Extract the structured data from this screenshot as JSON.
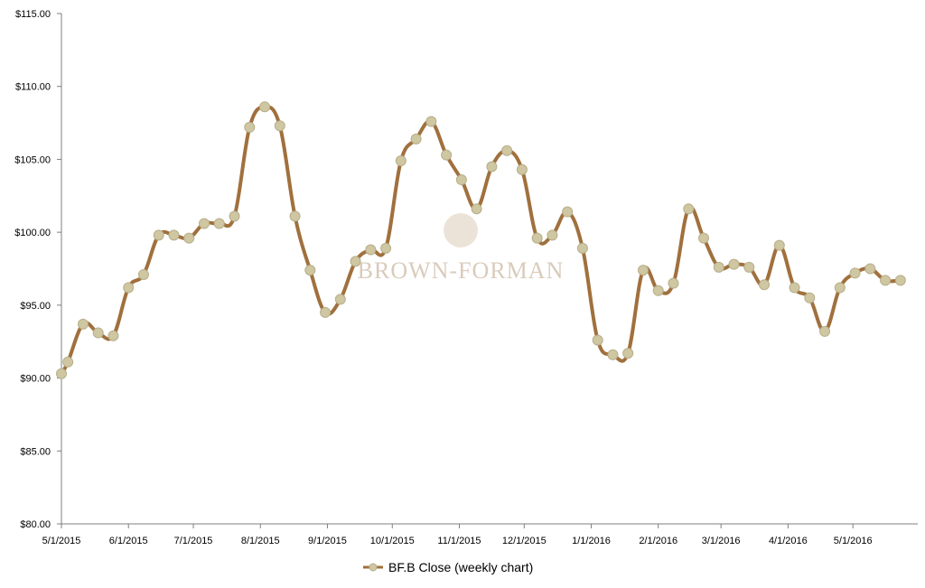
{
  "watermark": {
    "text": "BROWN-FORMAN",
    "color": "#d9cbbb"
  },
  "colors": {
    "line": "#a0703d",
    "marker_fill": "#cfc6a2",
    "marker_stroke": "#b7ae8a",
    "axis": "#7f7f7f"
  },
  "chart_data": {
    "type": "line",
    "title": "",
    "xlabel": "",
    "ylabel": "",
    "ylim": [
      80,
      115
    ],
    "yticks": [
      80,
      85,
      90,
      95,
      100,
      105,
      110,
      115
    ],
    "ytick_labels": [
      "$80.00",
      "$85.00",
      "$90.00",
      "$95.00",
      "$100.00",
      "$105.00",
      "$110.00",
      "$115.00"
    ],
    "xlim": [
      "2015-05-01",
      "2016-05-31"
    ],
    "xtick_dates": [
      "2015-05-01",
      "2015-06-01",
      "2015-07-01",
      "2015-08-01",
      "2015-09-01",
      "2015-10-01",
      "2015-11-01",
      "2015-12-01",
      "2016-01-01",
      "2016-02-01",
      "2016-03-01",
      "2016-04-01",
      "2016-05-01"
    ],
    "xtick_labels": [
      "5/1/2015",
      "6/1/2015",
      "7/1/2015",
      "8/1/2015",
      "9/1/2015",
      "10/1/2015",
      "11/1/2015",
      "12/1/2015",
      "1/1/2016",
      "2/1/2016",
      "3/1/2016",
      "4/1/2016",
      "5/1/2016"
    ],
    "grid": false,
    "legend_position": "bottom",
    "series": [
      {
        "name": "BF.B Close (weekly chart)",
        "x": [
          "2015-05-01",
          "2015-05-04",
          "2015-05-11",
          "2015-05-18",
          "2015-05-25",
          "2015-06-01",
          "2015-06-08",
          "2015-06-15",
          "2015-06-22",
          "2015-06-29",
          "2015-07-06",
          "2015-07-13",
          "2015-07-20",
          "2015-07-27",
          "2015-08-03",
          "2015-08-10",
          "2015-08-17",
          "2015-08-24",
          "2015-08-31",
          "2015-09-07",
          "2015-09-14",
          "2015-09-21",
          "2015-09-28",
          "2015-10-05",
          "2015-10-12",
          "2015-10-19",
          "2015-10-26",
          "2015-11-02",
          "2015-11-09",
          "2015-11-16",
          "2015-11-23",
          "2015-11-30",
          "2015-12-07",
          "2015-12-14",
          "2015-12-21",
          "2015-12-28",
          "2016-01-04",
          "2016-01-11",
          "2016-01-18",
          "2016-01-25",
          "2016-02-01",
          "2016-02-08",
          "2016-02-15",
          "2016-02-22",
          "2016-02-29",
          "2016-03-07",
          "2016-03-14",
          "2016-03-21",
          "2016-03-28",
          "2016-04-04",
          "2016-04-11",
          "2016-04-18",
          "2016-04-25",
          "2016-05-02",
          "2016-05-09",
          "2016-05-16",
          "2016-05-23"
        ],
        "values": [
          90.3,
          91.1,
          93.7,
          93.1,
          92.9,
          96.2,
          97.1,
          99.8,
          99.8,
          99.6,
          100.6,
          100.6,
          101.1,
          107.2,
          108.6,
          107.3,
          101.1,
          97.4,
          94.5,
          95.4,
          98.0,
          98.8,
          98.9,
          104.9,
          106.4,
          107.6,
          105.3,
          103.6,
          101.6,
          104.5,
          105.6,
          104.3,
          99.6,
          99.8,
          101.4,
          98.9,
          92.6,
          91.6,
          91.7,
          97.4,
          96.0,
          96.5,
          101.6,
          99.6,
          97.6,
          97.8,
          97.6,
          96.4,
          99.1,
          96.2,
          95.5,
          93.2,
          96.2,
          97.2,
          97.5,
          96.7,
          96.7
        ]
      }
    ]
  }
}
